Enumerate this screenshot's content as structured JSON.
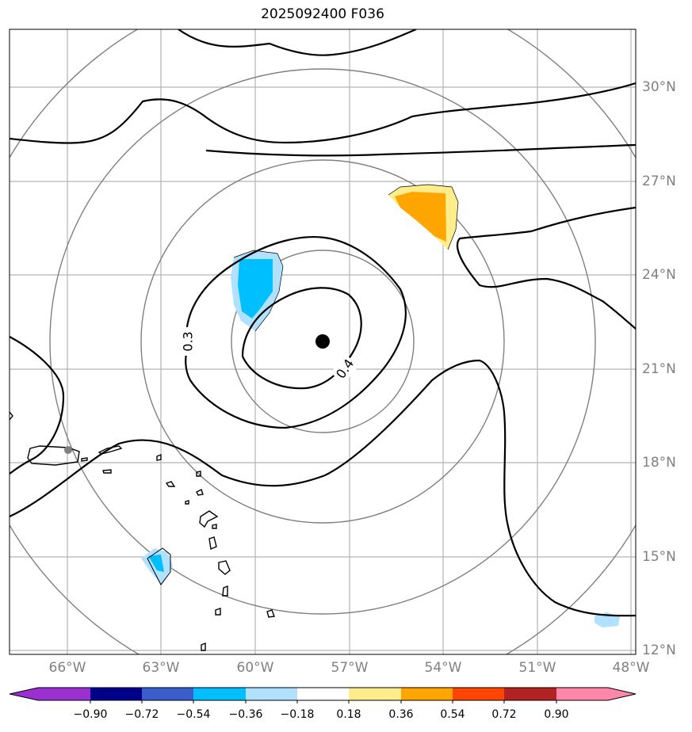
{
  "title": "2025092400 F036",
  "lon_ticks": [
    "66°W",
    "63°W",
    "60°W",
    "57°W",
    "54°W",
    "51°W",
    "48°W"
  ],
  "lat_ticks": [
    "30°N",
    "27°N",
    "24°N",
    "21°N",
    "18°N",
    "15°N",
    "12°N"
  ],
  "contour_labels": [
    "0.3",
    "0.4"
  ],
  "colorbar": {
    "labels": [
      "−0.90",
      "−0.72",
      "−0.54",
      "−0.36",
      "−0.18",
      "0.18",
      "0.36",
      "0.54",
      "0.72",
      "0.90"
    ],
    "colors": [
      "#9b30d0",
      "#00008b",
      "#3a5fcd",
      "#00bfff",
      "#b0e2ff",
      "#ffffff",
      "#ffec8b",
      "#ffa500",
      "#ff4500",
      "#b22222",
      "#ff88aa"
    ]
  },
  "storm_center_marker": "black-dot",
  "city_marker": "gray-dot"
}
